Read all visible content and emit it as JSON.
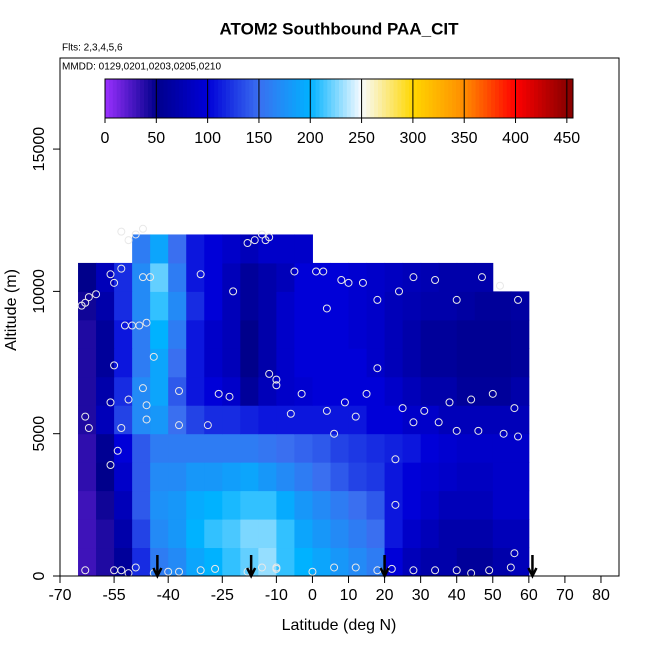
{
  "chart_data": {
    "type": "heatmap",
    "title": "ATOM2 Southbound PAA_CIT",
    "annotations": [
      "Flts: 2,3,4,5,6",
      "MMDD: 0129,0201,0203,0205,0210"
    ],
    "xlabel": "Latitude (deg N)",
    "ylabel": "Altitude (m)",
    "xlim": [
      -70,
      85
    ],
    "ylim": [
      0,
      18200
    ],
    "xticks": [
      -70,
      -55,
      -40,
      -25,
      -10,
      0,
      10,
      20,
      30,
      40,
      50,
      60,
      70,
      80
    ],
    "yticks": [
      0,
      5000,
      10000,
      15000
    ],
    "x_edges": [
      -65,
      -60,
      -55,
      -50,
      -45,
      -40,
      -35,
      -30,
      -25,
      -20,
      -15,
      -10,
      -5,
      0,
      5,
      10,
      15,
      20,
      25,
      30,
      35,
      40,
      45,
      50,
      55,
      60
    ],
    "y_edges": [
      0,
      1000,
      2000,
      3000,
      4000,
      5000,
      6000,
      7000,
      8000,
      9000,
      10000,
      11000,
      12000
    ],
    "z": [
      [
        30,
        40,
        60,
        120,
        160,
        170,
        190,
        200,
        210,
        220,
        230,
        210,
        200,
        190,
        180,
        170,
        160,
        100,
        80,
        70,
        70,
        60,
        60,
        70,
        80
      ],
      [
        30,
        40,
        70,
        130,
        170,
        180,
        200,
        210,
        215,
        225,
        225,
        210,
        190,
        180,
        170,
        160,
        150,
        110,
        90,
        80,
        70,
        70,
        70,
        80,
        80
      ],
      [
        30,
        45,
        80,
        140,
        175,
        180,
        195,
        200,
        205,
        210,
        210,
        195,
        180,
        170,
        160,
        150,
        140,
        110,
        100,
        90,
        80,
        80,
        80,
        90,
        90
      ],
      [
        35,
        50,
        90,
        140,
        170,
        170,
        180,
        180,
        185,
        190,
        180,
        170,
        160,
        150,
        140,
        130,
        125,
        110,
        100,
        95,
        90,
        85,
        85,
        90,
        90
      ],
      [
        35,
        55,
        100,
        140,
        160,
        160,
        160,
        160,
        160,
        160,
        155,
        150,
        145,
        140,
        130,
        125,
        120,
        115,
        110,
        100,
        95,
        90,
        90,
        90,
        90
      ],
      [
        40,
        80,
        130,
        170,
        180,
        150,
        130,
        120,
        120,
        115,
        110,
        110,
        110,
        110,
        110,
        110,
        100,
        100,
        90,
        90,
        80,
        80,
        80,
        80,
        80
      ],
      [
        40,
        70,
        120,
        170,
        190,
        140,
        110,
        100,
        90,
        60,
        80,
        90,
        95,
        100,
        100,
        100,
        100,
        90,
        80,
        70,
        70,
        60,
        60,
        60,
        70
      ],
      [
        40,
        60,
        110,
        160,
        190,
        150,
        110,
        90,
        80,
        50,
        70,
        90,
        100,
        100,
        100,
        100,
        90,
        80,
        70,
        60,
        60,
        55,
        55,
        55,
        60
      ],
      [
        40,
        60,
        110,
        160,
        200,
        160,
        110,
        90,
        80,
        50,
        70,
        90,
        100,
        100,
        100,
        95,
        90,
        80,
        70,
        60,
        60,
        55,
        55,
        55,
        60
      ],
      [
        45,
        70,
        120,
        170,
        210,
        170,
        120,
        100,
        80,
        60,
        70,
        90,
        100,
        100,
        100,
        95,
        90,
        80,
        75,
        70,
        70,
        65,
        60,
        60,
        65
      ],
      [
        50,
        80,
        120,
        170,
        220,
        160,
        110,
        100,
        80,
        60,
        70,
        80,
        100,
        100,
        100,
        95,
        90,
        85,
        80,
        75,
        70,
        70,
        70,
        null,
        null
      ],
      [
        null,
        null,
        null,
        160,
        190,
        150,
        110,
        100,
        90,
        80,
        90,
        90,
        90,
        null,
        null,
        null,
        null,
        null,
        null,
        null,
        null,
        null,
        null,
        null,
        null
      ]
    ],
    "points": {
      "x": [
        -53,
        -47,
        -51,
        -49,
        -56,
        -55,
        -45,
        -47,
        -53,
        -60,
        -62,
        -63,
        -64,
        -52,
        -50,
        -48,
        -46,
        -44,
        -31,
        -22,
        -18,
        -16,
        -14,
        -12,
        -13,
        -5,
        1,
        3,
        8,
        10,
        14,
        18,
        24,
        28,
        34,
        40,
        47,
        52,
        57,
        4,
        -55,
        -47,
        -51,
        -46,
        -37,
        -26,
        -23,
        -12,
        -10,
        -10,
        -6,
        -3,
        4,
        6,
        9,
        12,
        15,
        18,
        25,
        28,
        31,
        35,
        38,
        40,
        44,
        46,
        50,
        53,
        56,
        57,
        -56,
        -63,
        -62,
        -53,
        -46,
        -37,
        -29,
        -54,
        -56,
        23,
        23,
        -63,
        -55,
        -51,
        -49,
        -40,
        -31,
        -18,
        -10,
        0,
        6,
        12,
        18,
        22,
        28,
        34,
        40,
        44,
        49,
        55,
        56,
        -37,
        -27,
        -14,
        -44,
        -53,
        -10
      ],
      "y": [
        12100,
        12200,
        11800,
        12000,
        10600,
        10300,
        10500,
        10500,
        10800,
        9900,
        9800,
        9600,
        9500,
        8800,
        8800,
        8800,
        8900,
        7700,
        10600,
        10000,
        11700,
        11800,
        12000,
        11900,
        11800,
        10700,
        10700,
        10700,
        10400,
        10300,
        10300,
        9700,
        10000,
        10500,
        10400,
        9700,
        10500,
        10200,
        9700,
        9400,
        7400,
        6600,
        6200,
        6000,
        6500,
        6400,
        6300,
        7100,
        6900,
        6700,
        5700,
        6400,
        5800,
        5000,
        6100,
        5600,
        6400,
        7300,
        5900,
        5400,
        5800,
        5400,
        6100,
        5100,
        6200,
        5100,
        6400,
        5000,
        5900,
        4900,
        6100,
        5600,
        5200,
        5200,
        5500,
        5300,
        5300,
        4400,
        3900,
        4100,
        2500,
        200,
        200,
        100,
        300,
        150,
        200,
        150,
        250,
        150,
        300,
        300,
        200,
        250,
        200,
        200,
        200,
        100,
        200,
        300,
        800,
        150,
        250,
        300,
        100,
        200,
        300
      ]
    },
    "arrows": [
      -43,
      -17,
      20,
      61
    ],
    "colorbar": {
      "lim": [
        0,
        456
      ],
      "ticks": [
        0,
        50,
        100,
        150,
        200,
        250,
        300,
        350,
        400,
        450
      ],
      "colors": [
        "#9b30ff",
        "#00008b",
        "#0000d8",
        "#3a6ff0",
        "#00b2ff",
        "#f8fbff",
        "#ffd700",
        "#ff8c00",
        "#ff0000",
        "#8b0000"
      ]
    }
  }
}
